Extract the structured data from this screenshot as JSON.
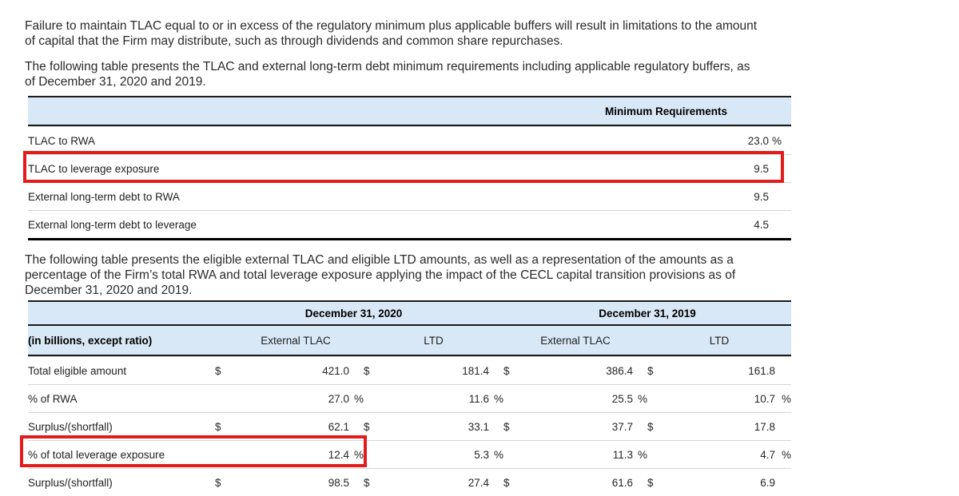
{
  "colors": {
    "highlight_red": "#e21c1c",
    "table_header_blue": "#d9e8f7"
  },
  "doc": {
    "paragraphs": [
      "Failure to maintain TLAC equal to or in excess of the regulatory minimum plus applicable buffers will result in limitations to the amount\nof capital that the Firm may distribute, such as through dividends and common share repurchases.",
      "The following table presents the TLAC and external long-term debt minimum requirements including applicable regulatory buffers, as\nof December 31, 2020 and 2019.",
      "The following table presents the eligible external TLAC and eligible LTD amounts, as well as a representation of the amounts as a\npercentage of the Firm’s total RWA and total leverage exposure applying the impact of the CECL capital transition provisions as of\nDecember 31, 2020 and 2019."
    ]
  },
  "table1": {
    "header": "Minimum Requirements",
    "rows": [
      {
        "label": "TLAC to RWA",
        "value": "23.0",
        "suffix": "%"
      },
      {
        "label": "TLAC to leverage exposure",
        "value": "9.5",
        "suffix": ""
      },
      {
        "label": "External long-term debt to RWA",
        "value": "9.5",
        "suffix": ""
      },
      {
        "label": "External long-term debt to leverage",
        "value": "4.5",
        "suffix": ""
      }
    ]
  },
  "table2": {
    "groups": [
      "December 31, 2020",
      "December 31, 2019"
    ],
    "unit_label": "(in billions, except ratio)",
    "col_headers": [
      "External TLAC",
      "LTD",
      "External TLAC",
      "LTD"
    ],
    "rows": [
      {
        "label": "Total eligible amount",
        "cells": [
          {
            "d": "$",
            "v": "421.0",
            "s": ""
          },
          {
            "d": "$",
            "v": "181.4",
            "s": ""
          },
          {
            "d": "$",
            "v": "386.4",
            "s": ""
          },
          {
            "d": "$",
            "v": "161.8",
            "s": ""
          }
        ]
      },
      {
        "label": "% of RWA",
        "cells": [
          {
            "d": "",
            "v": "27.0",
            "s": "%"
          },
          {
            "d": "",
            "v": "11.6",
            "s": "%"
          },
          {
            "d": "",
            "v": "25.5",
            "s": "%"
          },
          {
            "d": "",
            "v": "10.7",
            "s": "%"
          }
        ]
      },
      {
        "label": "Surplus/(shortfall)",
        "cells": [
          {
            "d": "$",
            "v": "62.1",
            "s": ""
          },
          {
            "d": "$",
            "v": "33.1",
            "s": ""
          },
          {
            "d": "$",
            "v": "37.7",
            "s": ""
          },
          {
            "d": "$",
            "v": "17.8",
            "s": ""
          }
        ]
      },
      {
        "label": "% of total leverage exposure",
        "cells": [
          {
            "d": "",
            "v": "12.4",
            "s": "%"
          },
          {
            "d": "",
            "v": "5.3",
            "s": "%"
          },
          {
            "d": "",
            "v": "11.3",
            "s": "%"
          },
          {
            "d": "",
            "v": "4.7",
            "s": "%"
          }
        ]
      },
      {
        "label": "Surplus/(shortfall)",
        "cells": [
          {
            "d": "$",
            "v": "98.5",
            "s": ""
          },
          {
            "d": "$",
            "v": "27.4",
            "s": ""
          },
          {
            "d": "$",
            "v": "61.6",
            "s": ""
          },
          {
            "d": "$",
            "v": "6.9",
            "s": ""
          }
        ]
      }
    ]
  }
}
